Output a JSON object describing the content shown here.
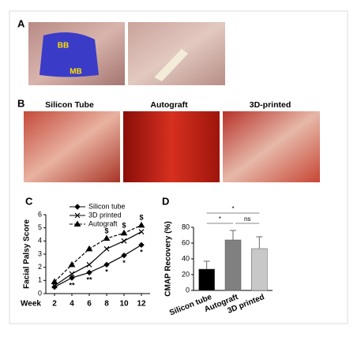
{
  "panels": {
    "a": {
      "label": "A",
      "left_labels": [
        "BB",
        "MB"
      ]
    },
    "b": {
      "label": "B",
      "headers": [
        "Silicon Tube",
        "Autograft",
        "3D-printed"
      ]
    }
  },
  "chart_data": [
    {
      "type": "line",
      "panel": "C",
      "xlabel": "Week",
      "ylabel": "Facial Palsy Score",
      "x": [
        2,
        4,
        6,
        8,
        10,
        12
      ],
      "xlim": [
        1,
        13
      ],
      "xticks": [
        2,
        4,
        6,
        8,
        10,
        12
      ],
      "ylim": [
        0,
        6
      ],
      "yticks": [
        0,
        1,
        2,
        3,
        4,
        5,
        6
      ],
      "series": [
        {
          "name": "Silicon tube",
          "color": "#000000",
          "marker": "diamond",
          "dashed": false,
          "values": [
            0.5,
            1.2,
            1.6,
            2.2,
            2.9,
            3.7
          ],
          "marks_below": [
            null,
            "**",
            "**",
            "*",
            "*",
            "*"
          ]
        },
        {
          "name": "3D printed",
          "color": "#000000",
          "marker": "x",
          "dashed": false,
          "values": [
            0.6,
            1.5,
            2.2,
            3.4,
            4.0,
            4.7
          ]
        },
        {
          "name": "Autograft",
          "color": "#000000",
          "marker": "triangle",
          "dashed": true,
          "values": [
            0.9,
            2.2,
            3.4,
            4.2,
            4.6,
            5.2
          ],
          "marks_above": [
            null,
            null,
            null,
            "$",
            "$",
            "$"
          ]
        }
      ]
    },
    {
      "type": "bar",
      "panel": "D",
      "ylabel": "CMAP Recovery (%)",
      "categories": [
        "Silicon tube",
        "Autograft",
        "3D printed"
      ],
      "values": [
        27,
        64,
        53
      ],
      "errors": [
        10,
        12,
        15
      ],
      "colors": [
        "#000000",
        "#808080",
        "#c8c8c8"
      ],
      "ylim": [
        0,
        80
      ],
      "yticks": [
        0,
        20,
        40,
        60,
        80
      ],
      "comparisons": [
        {
          "from": 0,
          "to": 2,
          "label": "*"
        },
        {
          "from": 0,
          "to": 1,
          "label": "*"
        },
        {
          "from": 1,
          "to": 2,
          "label": "ns"
        }
      ]
    }
  ]
}
